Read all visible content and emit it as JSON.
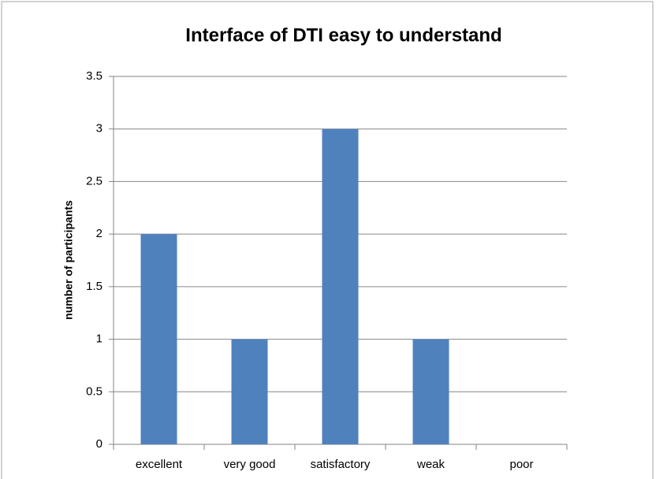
{
  "chart_data": {
    "type": "bar",
    "title": "Interface of DTI easy to understand",
    "y_label": "number of participants",
    "categories": [
      "excellent",
      "very good",
      "satisfactory",
      "weak",
      "poor"
    ],
    "values": [
      2,
      1,
      3,
      1,
      0
    ],
    "color": "#4f81bd",
    "ylim": [
      0,
      3.5
    ],
    "yticks": [
      0,
      0.5,
      1,
      1.5,
      2,
      2.5,
      3,
      3.5
    ],
    "grid": true
  }
}
